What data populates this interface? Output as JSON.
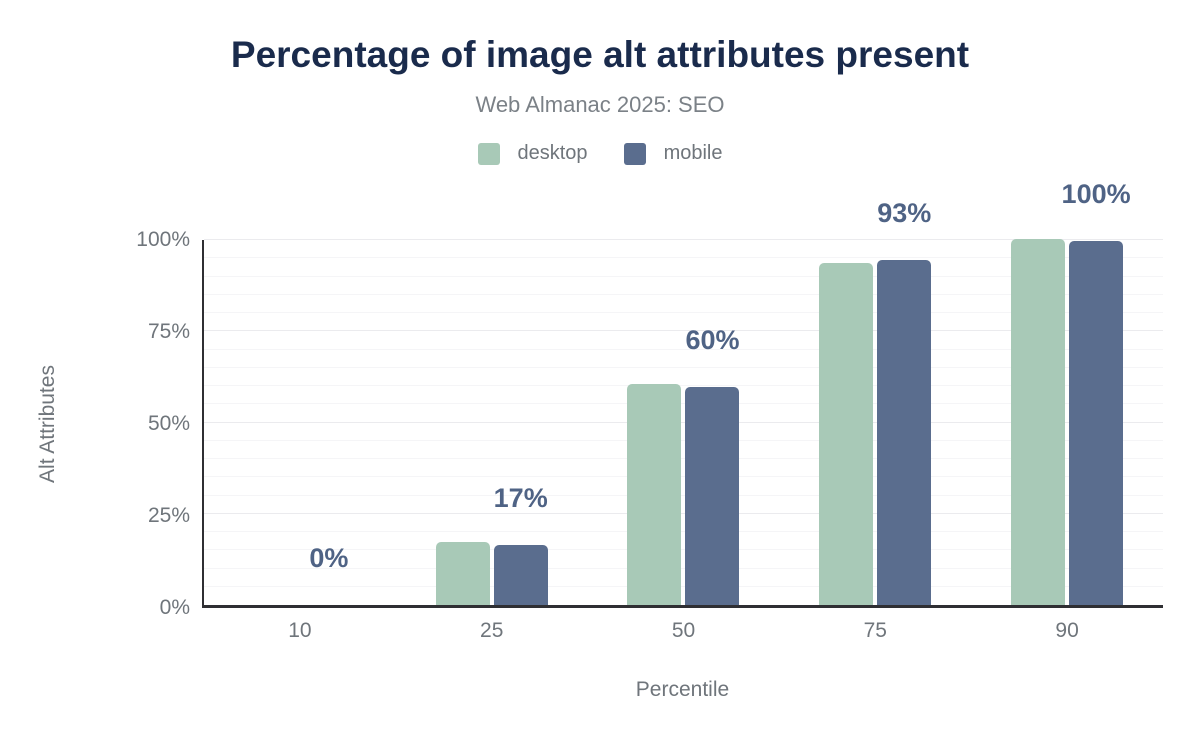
{
  "header": {
    "title": "Percentage of image alt attributes present",
    "subtitle": "Web Almanac 2025: SEO"
  },
  "chart_data": {
    "type": "bar",
    "title": "Percentage of image alt attributes present",
    "subtitle": "Web Almanac 2025: SEO",
    "categories": [
      "10",
      "25",
      "50",
      "75",
      "90"
    ],
    "series": [
      {
        "name": "desktop",
        "color": "#a8c9b7",
        "values": [
          0,
          17,
          60,
          93,
          99.5
        ]
      },
      {
        "name": "mobile",
        "color": "#5a6d8e",
        "values": [
          0,
          16.3,
          59.3,
          93.7,
          99
        ]
      }
    ],
    "bar_labels": [
      "0%",
      "17%",
      "60%",
      "93%",
      "100%"
    ],
    "xlabel": "Percentile",
    "ylabel": "Alt Attributes",
    "ylim": [
      0,
      100
    ],
    "yticks": [
      {
        "value": 0,
        "label": "0%"
      },
      {
        "value": 25,
        "label": "25%"
      },
      {
        "value": 50,
        "label": "50%"
      },
      {
        "value": 75,
        "label": "75%"
      },
      {
        "value": 100,
        "label": "100%"
      }
    ],
    "grid": {
      "orientation": "horizontal",
      "minor_step": 5,
      "major_step": 25
    },
    "legend_position": "top"
  },
  "colors": {
    "title": "#1a2b4c",
    "subtitle": "#7b8187",
    "axis_text": "#6f757b",
    "bar_label": "#4f6385",
    "axis_line": "#2f2f33",
    "grid_minor": "#f5f5f7",
    "grid_major": "#ebebee",
    "background": "#ffffff"
  }
}
